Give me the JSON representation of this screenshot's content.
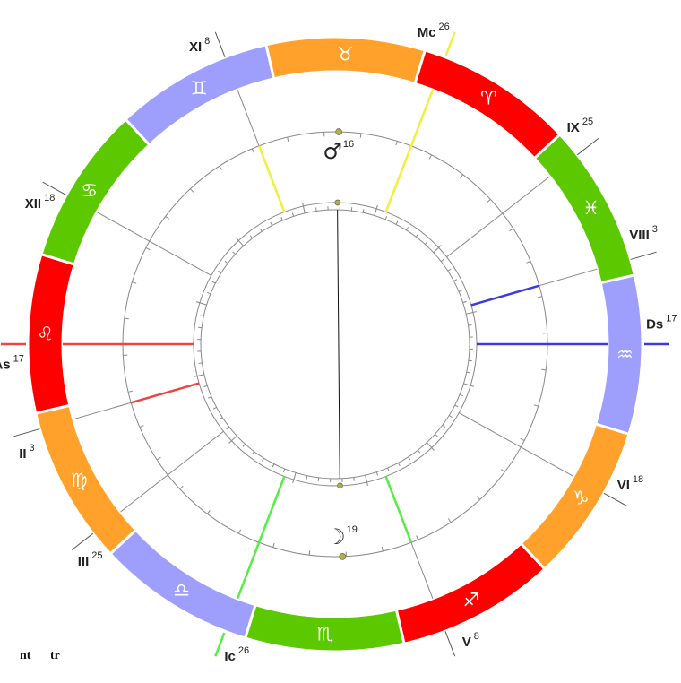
{
  "chart": {
    "ascendant_longitude": 137,
    "signs": [
      {
        "name": "aries",
        "glyph": "♈︎",
        "color": "#ff0000"
      },
      {
        "name": "taurus",
        "glyph": "♉︎",
        "color": "#ffa12b"
      },
      {
        "name": "gemini",
        "glyph": "♊︎",
        "color": "#9e9efc"
      },
      {
        "name": "cancer",
        "glyph": "♋︎",
        "color": "#5cc800"
      },
      {
        "name": "leo",
        "glyph": "♌︎",
        "color": "#ff0000"
      },
      {
        "name": "virgo",
        "glyph": "♍︎",
        "color": "#ffa12b"
      },
      {
        "name": "libra",
        "glyph": "♎︎",
        "color": "#9e9efc"
      },
      {
        "name": "scorpio",
        "glyph": "♏︎",
        "color": "#5cc800"
      },
      {
        "name": "sagittarius",
        "glyph": "♐︎",
        "color": "#ff0000"
      },
      {
        "name": "capricorn",
        "glyph": "♑︎",
        "color": "#ffa12b"
      },
      {
        "name": "aquarius",
        "glyph": "♒︎",
        "color": "#9e9efc"
      },
      {
        "name": "pisces",
        "glyph": "♓︎",
        "color": "#5cc800"
      }
    ],
    "houses": [
      {
        "label": "As",
        "degree": "17",
        "longitude": 137,
        "axis_color": "#ee4444"
      },
      {
        "label": "II",
        "degree": "3",
        "longitude": 153,
        "axis_color": "#ee4444"
      },
      {
        "label": "III",
        "degree": "25",
        "longitude": 175
      },
      {
        "label": "Ic",
        "degree": "26",
        "longitude": 206,
        "axis_color": "#55ee44"
      },
      {
        "label": "V",
        "degree": "8",
        "longitude": 248,
        "axis_color": "#55ee44"
      },
      {
        "label": "VI",
        "degree": "18",
        "longitude": 288
      },
      {
        "label": "Ds",
        "degree": "17",
        "longitude": 317,
        "axis_color": "#3b3be0"
      },
      {
        "label": "VIII",
        "degree": "3",
        "longitude": 333,
        "axis_color": "#3b3be0"
      },
      {
        "label": "IX",
        "degree": "25",
        "longitude": 355
      },
      {
        "label": "Mc",
        "degree": "26",
        "longitude": 26,
        "axis_color": "#f0f040"
      },
      {
        "label": "XI",
        "degree": "8",
        "longitude": 68,
        "axis_color": "#f0f040"
      },
      {
        "label": "XII",
        "degree": "18",
        "longitude": 108
      }
    ],
    "planets": [
      {
        "name": "mars",
        "glyph": "♂︎",
        "degree": "16",
        "longitude": 46
      },
      {
        "name": "moon",
        "glyph": "☽︎",
        "degree": "19",
        "longitude": 229
      }
    ],
    "aspects": [
      {
        "from": "mars",
        "to": "moon",
        "color": "#111111"
      }
    ]
  },
  "legend": [
    "nt",
    "tr"
  ]
}
